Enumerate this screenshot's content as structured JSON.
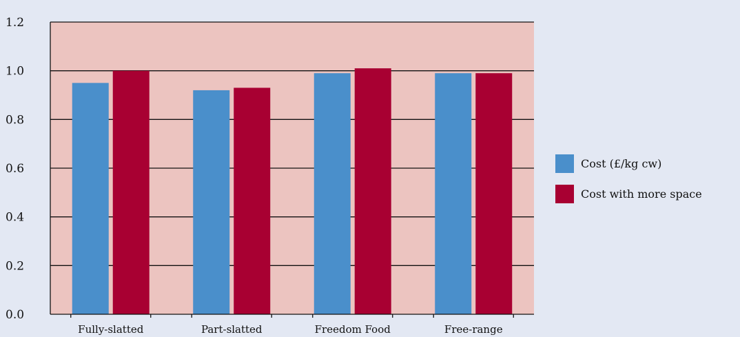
{
  "chart_data": {
    "type": "bar",
    "categories": [
      "Fully-slatted",
      "Part-slatted",
      "Freedom Food",
      "Free-range"
    ],
    "series": [
      {
        "name": "Cost (£/kg cw)",
        "values": [
          0.95,
          0.92,
          0.99,
          0.99
        ],
        "color": "#4a8fcb"
      },
      {
        "name": "Cost with more space",
        "values": [
          1.0,
          0.93,
          1.01,
          0.99
        ],
        "color": "#a80032"
      }
    ],
    "ylim": [
      0,
      1.2
    ],
    "yticks": [
      "0.0",
      "0.2",
      "0.4",
      "0.6",
      "0.8",
      "1.0",
      "1.2"
    ],
    "grid": true,
    "legend_position": "right",
    "plot_background": "#ecc4c0",
    "page_background": "#e3e8f3"
  }
}
